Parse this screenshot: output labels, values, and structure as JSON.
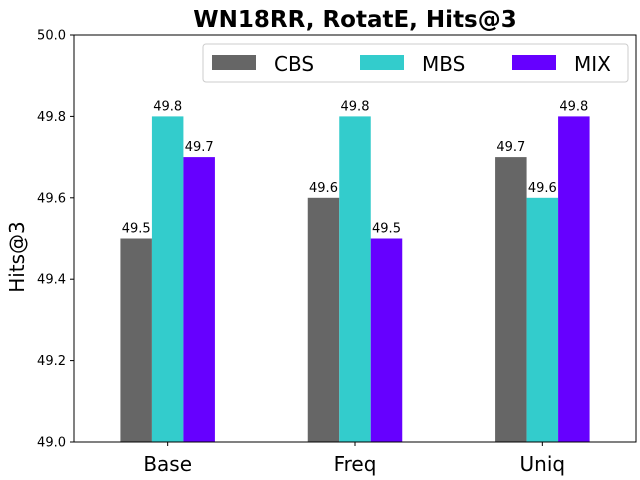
{
  "chart_data": {
    "type": "bar",
    "title": "WN18RR, RotatE, Hits@3",
    "xlabel": "",
    "ylabel": "Hits@3",
    "ylim": [
      49.0,
      50.0
    ],
    "yticks": [
      "49.0",
      "49.2",
      "49.4",
      "49.6",
      "49.8",
      "50.0"
    ],
    "categories": [
      "Base",
      "Freq",
      "Uniq"
    ],
    "series": [
      {
        "name": "CBS",
        "color": "#666666",
        "values": [
          49.5,
          49.6,
          49.7
        ],
        "labels": [
          "49.5",
          "49.6",
          "49.7"
        ]
      },
      {
        "name": "MBS",
        "color": "#33cccc",
        "values": [
          49.8,
          49.8,
          49.6
        ],
        "labels": [
          "49.8",
          "49.8",
          "49.6"
        ]
      },
      {
        "name": "MIX",
        "color": "#6600ff",
        "values": [
          49.7,
          49.5,
          49.8
        ],
        "labels": [
          "49.7",
          "49.5",
          "49.8"
        ]
      }
    ],
    "grid": false,
    "legend": "top-right, horizontal"
  }
}
